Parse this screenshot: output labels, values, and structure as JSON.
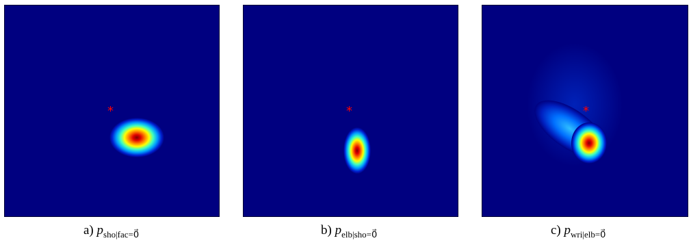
{
  "panels": [
    {
      "prefix": "a)",
      "symbol": "p",
      "subscript": "sho|fac=0⃗"
    },
    {
      "prefix": "b)",
      "symbol": "p",
      "subscript": "elb|sho=0⃗"
    },
    {
      "prefix": "c)",
      "symbol": "p",
      "subscript": "wri|elb=0⃗"
    }
  ],
  "colors": {
    "background": "#000080",
    "star": "#ff0000"
  },
  "marker": "*"
}
